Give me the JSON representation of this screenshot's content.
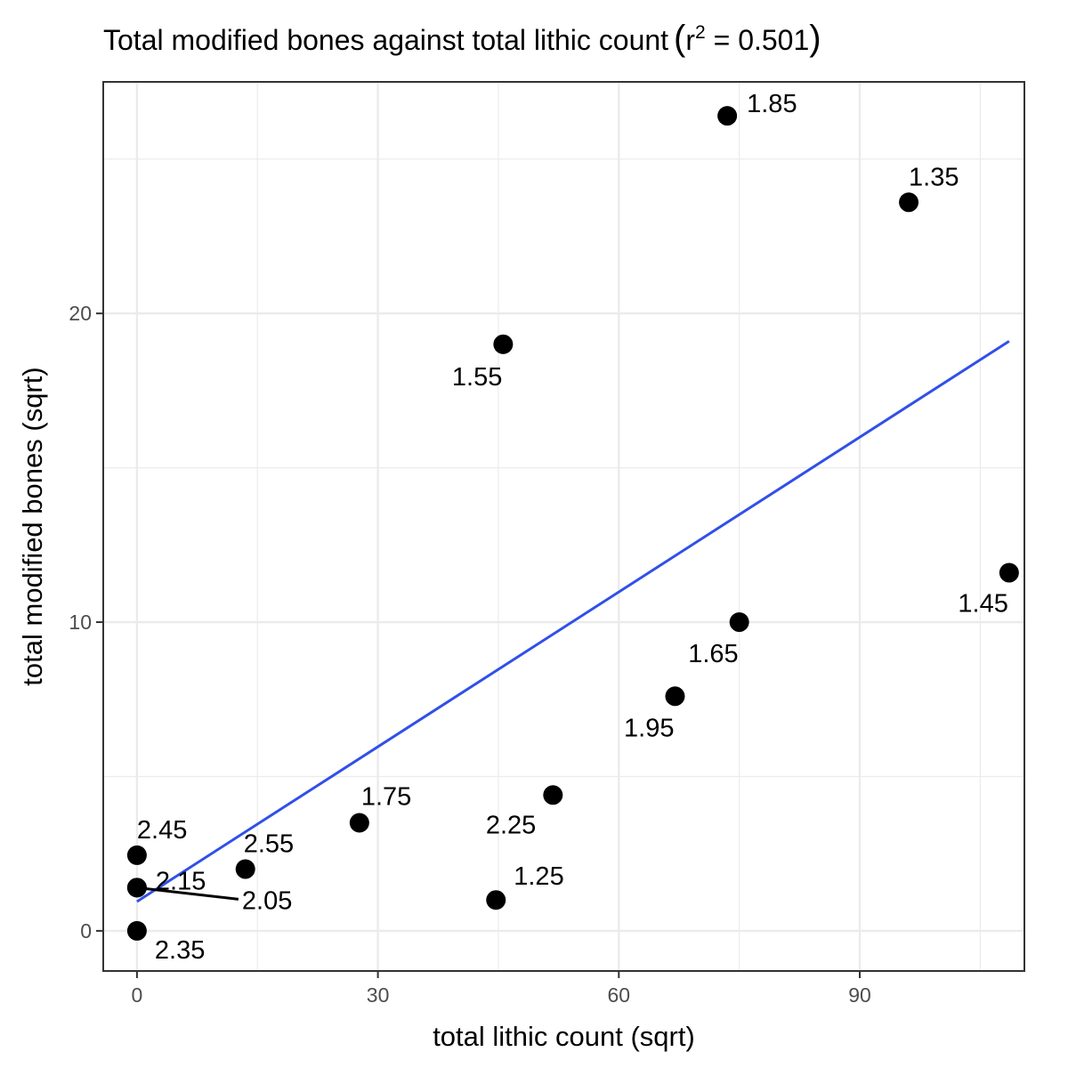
{
  "chart_data": {
    "type": "scatter",
    "title_main": "Total modified bones against total lithic count",
    "title_stat_symbol": "r",
    "title_stat_exponent": "2",
    "title_stat_value": " = 0.501",
    "xlabel": "total lithic count (sqrt)",
    "ylabel": "total modified bones (sqrt)",
    "xlim": [
      -4.2,
      110.5
    ],
    "ylim": [
      -1.3,
      27.5
    ],
    "x_ticks": [
      0,
      30,
      60,
      90
    ],
    "x_tick_labels": [
      "0",
      "30",
      "60",
      "90"
    ],
    "x_minor_ticks": [
      15,
      45,
      75,
      105
    ],
    "y_ticks": [
      0,
      10,
      20
    ],
    "y_tick_labels": [
      "0",
      "10",
      "20"
    ],
    "y_minor_ticks": [
      5,
      15,
      25
    ],
    "grid": true,
    "points": [
      {
        "x": 73.5,
        "y": 26.4,
        "label": "1.85"
      },
      {
        "x": 96.1,
        "y": 23.6,
        "label": "1.35"
      },
      {
        "x": 45.6,
        "y": 19.0,
        "label": "1.55"
      },
      {
        "x": 108.6,
        "y": 11.6,
        "label": "1.45"
      },
      {
        "x": 75.0,
        "y": 10.0,
        "label": "1.65"
      },
      {
        "x": 67.0,
        "y": 7.6,
        "label": "1.95"
      },
      {
        "x": 51.8,
        "y": 4.4,
        "label": "2.25"
      },
      {
        "x": 27.7,
        "y": 3.5,
        "label": "1.75"
      },
      {
        "x": 44.7,
        "y": 1.0,
        "label": "1.25"
      },
      {
        "x": 13.5,
        "y": 2.0,
        "label": "2.55"
      },
      {
        "x": 0.0,
        "y": 2.45,
        "label": "2.45"
      },
      {
        "x": 0.0,
        "y": 1.4,
        "label": "2.15"
      },
      {
        "x": 0.0,
        "y": 1.4,
        "label": "2.05"
      },
      {
        "x": 0.0,
        "y": 0.0,
        "label": "2.35"
      }
    ],
    "fit_line": {
      "x": [
        0,
        108.6
      ],
      "y": [
        0.95,
        19.1
      ],
      "color": "#3050e8"
    },
    "point_color": "#000000",
    "grid_color": "#ebebeb",
    "panel_border_color": "#333333"
  }
}
